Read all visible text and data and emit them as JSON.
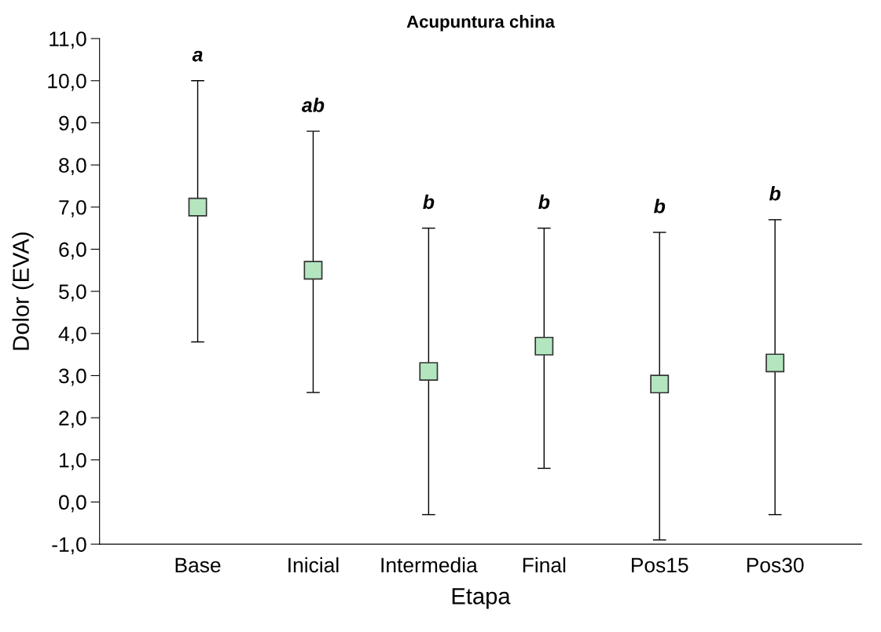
{
  "chart_data": {
    "type": "scatter",
    "title": "Acupuntura china",
    "xlabel": "Etapa",
    "ylabel": "Dolor (EVA)",
    "categories": [
      "Base",
      "Inicial",
      "Intermedia",
      "Final",
      "Pos15",
      "Pos30"
    ],
    "series": [
      {
        "color": "#b3e6bf",
        "values": [
          7.0,
          5.5,
          3.1,
          3.7,
          2.8,
          3.3
        ],
        "errors": [
          [
            3.8,
            10.0
          ],
          [
            2.6,
            8.8
          ],
          [
            -0.3,
            6.5
          ],
          [
            0.8,
            6.5
          ],
          [
            -0.9,
            6.4
          ],
          [
            -0.3,
            6.7
          ]
        ]
      }
    ],
    "marker": "square",
    "grid": false,
    "legend": false,
    "ylim": [
      -1,
      11
    ],
    "yticks": [
      {
        "value": -1,
        "label": "-1,0"
      },
      {
        "value": 0,
        "label": "0,0"
      },
      {
        "value": 1,
        "label": "1,0"
      },
      {
        "value": 2,
        "label": "2,0"
      },
      {
        "value": 3,
        "label": "3,0"
      },
      {
        "value": 4,
        "label": "4,0"
      },
      {
        "value": 5,
        "label": "5,0"
      },
      {
        "value": 6,
        "label": "6,0"
      },
      {
        "value": 7,
        "label": "7,0"
      },
      {
        "value": 8,
        "label": "8,0"
      },
      {
        "value": 9,
        "label": "9,0"
      },
      {
        "value": 10,
        "label": "10,0"
      },
      {
        "value": 11,
        "label": "11,0"
      }
    ],
    "annotations": [
      "a",
      "ab",
      "b",
      "b",
      "b",
      "b"
    ]
  }
}
